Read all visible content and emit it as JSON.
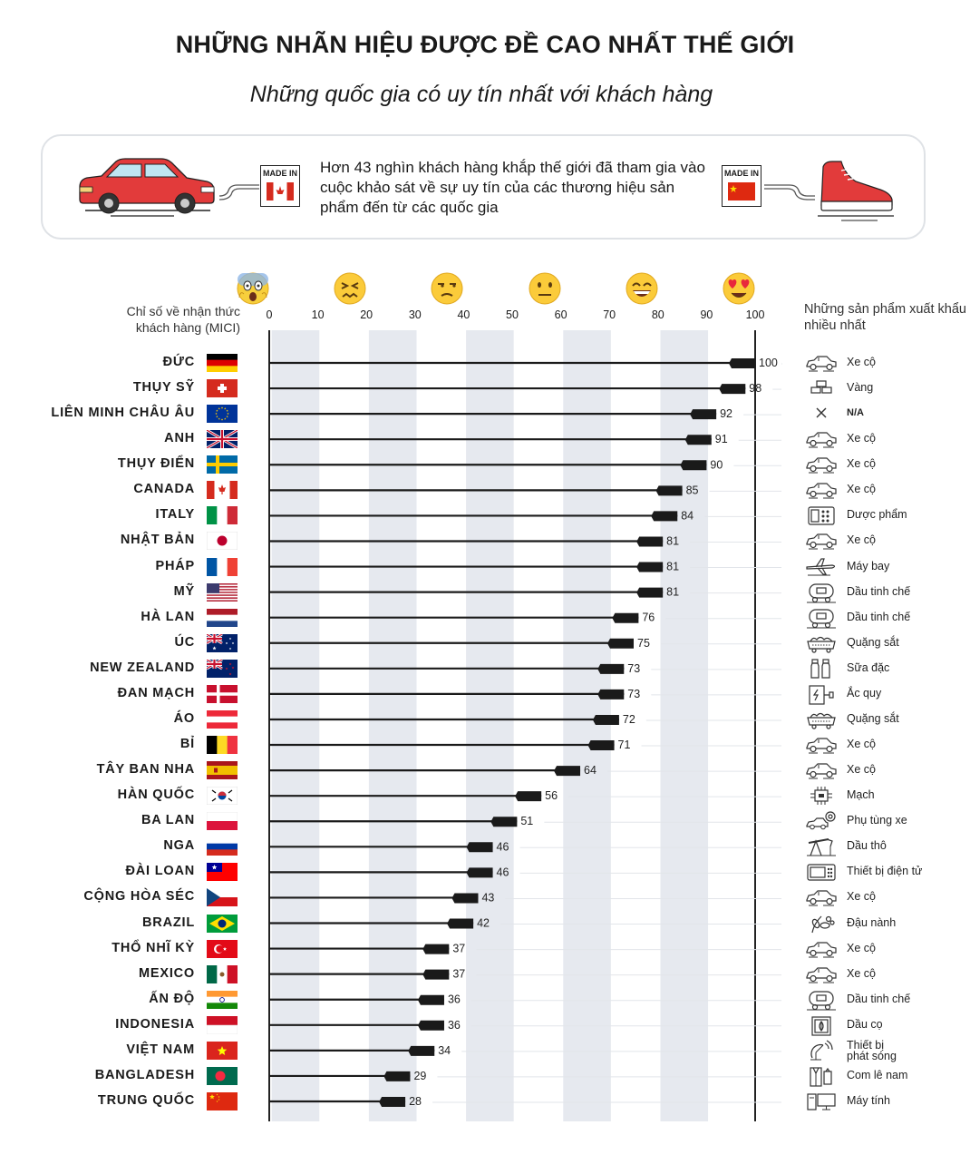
{
  "title": "NHỮNG NHÃN HIỆU ĐƯỢC ĐỀ CAO NHẤT THẾ GIỚI",
  "subtitle": "Những quốc gia có uy tín nhất với khách hàng",
  "banner": {
    "text": "Hơn 43 nghìn khách hàng khắp thế giới đã tham gia vào cuộc khảo sát về sự uy tín của các thương hiệu sản phẩm đến từ các quốc gia",
    "madein_left": "MADE IN",
    "madein_right": "MADE IN"
  },
  "labels": {
    "scale": "Chỉ số về nhận thức khách hàng (MICI)",
    "products": "Những sản phẩm xuất khẩu nhiều nhất"
  },
  "colors": {
    "bar": "#1a1a1a",
    "band": "#e6e9ef",
    "car": "#e23b3b"
  },
  "chart_data": {
    "type": "bar",
    "orientation": "horizontal",
    "xlim": [
      0,
      100
    ],
    "ticks": [
      "0",
      "10",
      "20",
      "30",
      "40",
      "50",
      "60",
      "70",
      "80",
      "90",
      "100"
    ],
    "categories": [
      "ĐỨC",
      "THỤY SỸ",
      "LIÊN MINH CHÂU ÂU",
      "ANH",
      "THỤY ĐIỂN",
      "CANADA",
      "ITALY",
      "NHẬT BẢN",
      "PHÁP",
      "MỸ",
      "HÀ LAN",
      "ÚC",
      "NEW ZEALAND",
      "ĐAN MẠCH",
      "ÁO",
      "BỈ",
      "TÂY BAN NHA",
      "HÀN QUỐC",
      "BA LAN",
      "NGA",
      "ĐÀI LOAN",
      "CỘNG HÒA SÉC",
      "BRAZIL",
      "THỔ NHĨ KỲ",
      "MEXICO",
      "ẤN ĐỘ",
      "INDONESIA",
      "VIỆT NAM",
      "BANGLADESH",
      "TRUNG QUỐC"
    ],
    "values": [
      100,
      98,
      92,
      91,
      90,
      85,
      84,
      81,
      81,
      81,
      76,
      75,
      73,
      73,
      72,
      71,
      64,
      56,
      51,
      46,
      46,
      43,
      42,
      37,
      37,
      36,
      36,
      34,
      29,
      28
    ],
    "products": [
      "Xe cộ",
      "Vàng",
      "N/A",
      "Xe cộ",
      "Xe cộ",
      "Xe cộ",
      "Dược phẩm",
      "Xe cộ",
      "Máy bay",
      "Dầu tinh chế",
      "Dầu tinh chế",
      "Quặng sắt",
      "Sữa đặc",
      "Ắc quy",
      "Quặng sắt",
      "Xe cộ",
      "Xe cộ",
      "Mạch",
      "Phụ tùng xe",
      "Dầu thô",
      "Thiết bị điện tử",
      "Xe cộ",
      "Đậu nành",
      "Xe cộ",
      "Xe cộ",
      "Dầu tinh chế",
      "Dầu cọ",
      "Thiết bị phát sóng",
      "Com lê nam",
      "Máy tính"
    ],
    "product_icons": [
      "car-icon",
      "gold-icon",
      "na-icon",
      "car-icon",
      "car-icon",
      "car-icon",
      "pharma-icon",
      "car-icon",
      "plane-icon",
      "tanker-icon",
      "tanker-icon",
      "ore-icon",
      "milk-icon",
      "battery-icon",
      "ore-icon",
      "car-icon",
      "car-icon",
      "circuit-icon",
      "parts-icon",
      "oil-pump-icon",
      "electronics-icon",
      "car-icon",
      "soybean-icon",
      "car-icon",
      "car-icon",
      "tanker-icon",
      "palm-oil-icon",
      "antenna-icon",
      "suit-icon",
      "computer-icon"
    ],
    "flags": [
      "de",
      "ch",
      "eu",
      "gb",
      "se",
      "ca",
      "it",
      "jp",
      "fr",
      "us",
      "nl",
      "au",
      "nz",
      "dk",
      "at",
      "be",
      "es",
      "kr",
      "pl",
      "ru",
      "tw",
      "cz",
      "br",
      "tr",
      "mx",
      "in",
      "id",
      "vn",
      "bd",
      "cn"
    ],
    "emoji_scale": [
      {
        "value": 0,
        "icon": "screaming-face-icon"
      },
      {
        "value": 20,
        "icon": "confounded-face-icon"
      },
      {
        "value": 40,
        "icon": "unamused-face-icon"
      },
      {
        "value": 60,
        "icon": "neutral-face-icon"
      },
      {
        "value": 80,
        "icon": "grinning-face-icon"
      },
      {
        "value": 100,
        "icon": "heart-eyes-face-icon"
      }
    ]
  }
}
